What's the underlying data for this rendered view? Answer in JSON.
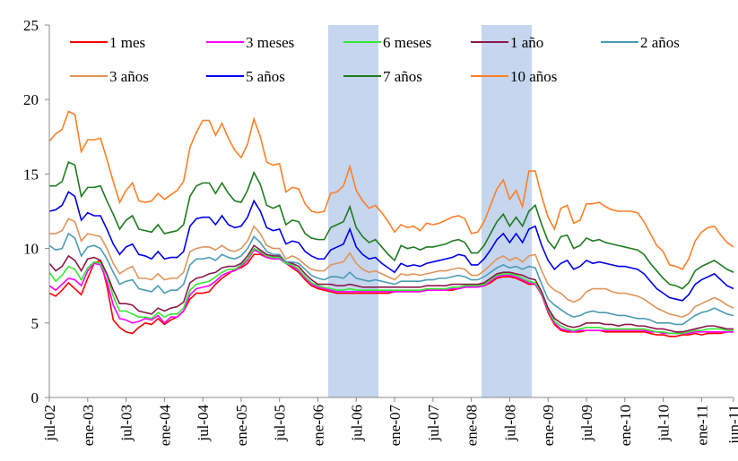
{
  "chart_data": {
    "type": "line",
    "categories": [
      "jul-02",
      null,
      null,
      null,
      null,
      null,
      "ene-03",
      null,
      null,
      null,
      null,
      null,
      "jul-03",
      null,
      null,
      null,
      null,
      null,
      "ene-04",
      null,
      null,
      null,
      null,
      null,
      "jul-04",
      null,
      null,
      null,
      null,
      null,
      "ene-05",
      null,
      null,
      null,
      null,
      null,
      "jul-05",
      null,
      null,
      null,
      null,
      null,
      "ene-06",
      null,
      null,
      null,
      null,
      null,
      "jul-06",
      null,
      null,
      null,
      null,
      null,
      "ene-07",
      null,
      null,
      null,
      null,
      null,
      "jul-07",
      null,
      null,
      null,
      null,
      null,
      "ene-08",
      null,
      null,
      null,
      null,
      null,
      "jul-08",
      null,
      null,
      null,
      null,
      null,
      "ene-09",
      null,
      null,
      null,
      null,
      null,
      "jul-09",
      null,
      null,
      null,
      null,
      null,
      "ene-10",
      null,
      null,
      null,
      null,
      null,
      "jul-10",
      null,
      null,
      null,
      null,
      null,
      "ene-11",
      null,
      null,
      null,
      null,
      "jun-11"
    ],
    "series": [
      {
        "name": "1 mes",
        "color": "#ff0000",
        "values": [
          7.0,
          6.8,
          7.2,
          7.7,
          7.3,
          6.9,
          8.0,
          9.0,
          9.2,
          7.5,
          5.2,
          4.7,
          4.4,
          4.3,
          4.7,
          5.0,
          4.9,
          5.3,
          4.9,
          5.2,
          5.4,
          5.8,
          6.6,
          7.0,
          7.0,
          7.1,
          7.6,
          8.0,
          8.3,
          8.6,
          8.7,
          9.0,
          9.6,
          9.6,
          9.4,
          9.3,
          9.3,
          9.0,
          8.7,
          8.4,
          7.9,
          7.5,
          7.3,
          7.2,
          7.1,
          7.0,
          7.0,
          7.0,
          7.0,
          7.0,
          7.0,
          7.0,
          7.0,
          7.0,
          7.1,
          7.1,
          7.1,
          7.1,
          7.1,
          7.2,
          7.2,
          7.2,
          7.2,
          7.2,
          7.3,
          7.4,
          7.5,
          7.5,
          7.5,
          7.7,
          8.0,
          8.1,
          8.1,
          8.0,
          7.8,
          7.6,
          7.6,
          6.9,
          5.7,
          4.9,
          4.5,
          4.4,
          4.4,
          4.4,
          4.5,
          4.5,
          4.5,
          4.4,
          4.4,
          4.4,
          4.4,
          4.4,
          4.4,
          4.4,
          4.3,
          4.2,
          4.2,
          4.1,
          4.1,
          4.2,
          4.2,
          4.3,
          4.2,
          4.3,
          4.3,
          4.3,
          4.4,
          4.4
        ]
      },
      {
        "name": "3 meses",
        "color": "#ff00ff",
        "values": [
          7.5,
          7.2,
          7.6,
          8.0,
          7.9,
          7.5,
          8.5,
          9.0,
          8.9,
          7.8,
          6.2,
          5.3,
          5.2,
          5.0,
          5.1,
          5.3,
          5.2,
          5.5,
          5.0,
          5.4,
          5.4,
          5.8,
          6.9,
          7.3,
          7.4,
          7.5,
          7.8,
          8.2,
          8.4,
          8.5,
          8.8,
          9.2,
          9.9,
          9.7,
          9.4,
          9.3,
          9.3,
          9.0,
          8.8,
          8.5,
          8.0,
          7.6,
          7.4,
          7.3,
          7.2,
          7.1,
          7.1,
          7.1,
          7.1,
          7.1,
          7.1,
          7.1,
          7.1,
          7.1,
          7.1,
          7.1,
          7.1,
          7.1,
          7.1,
          7.2,
          7.2,
          7.2,
          7.2,
          7.3,
          7.3,
          7.4,
          7.4,
          7.4,
          7.5,
          7.8,
          8.1,
          8.2,
          8.2,
          8.1,
          7.9,
          7.7,
          7.6,
          6.9,
          5.8,
          5.0,
          4.6,
          4.5,
          4.4,
          4.5,
          4.5,
          4.5,
          4.5,
          4.5,
          4.5,
          4.5,
          4.5,
          4.5,
          4.5,
          4.5,
          4.4,
          4.4,
          4.3,
          4.3,
          4.3,
          4.3,
          4.3,
          4.4,
          4.4,
          4.4,
          4.4,
          4.4,
          4.4,
          4.4
        ]
      },
      {
        "name": "6 meses",
        "color": "#33e833",
        "values": [
          8.4,
          7.8,
          8.2,
          8.8,
          8.6,
          7.9,
          8.7,
          9.1,
          9.0,
          8.2,
          6.8,
          5.8,
          5.8,
          5.6,
          5.4,
          5.4,
          5.3,
          5.7,
          5.4,
          5.6,
          5.6,
          6.0,
          7.2,
          7.6,
          7.7,
          7.8,
          8.1,
          8.4,
          8.6,
          8.6,
          8.9,
          9.3,
          10.0,
          9.8,
          9.5,
          9.4,
          9.4,
          9.0,
          8.9,
          8.6,
          8.1,
          7.7,
          7.5,
          7.4,
          7.3,
          7.2,
          7.2,
          7.3,
          7.2,
          7.2,
          7.2,
          7.2,
          7.2,
          7.2,
          7.2,
          7.2,
          7.2,
          7.2,
          7.2,
          7.3,
          7.3,
          7.3,
          7.3,
          7.4,
          7.4,
          7.5,
          7.5,
          7.5,
          7.6,
          7.9,
          8.2,
          8.3,
          8.3,
          8.2,
          8.0,
          7.8,
          7.7,
          7.0,
          5.9,
          5.1,
          4.8,
          4.6,
          4.5,
          4.6,
          4.7,
          4.7,
          4.7,
          4.6,
          4.6,
          4.6,
          4.6,
          4.6,
          4.6,
          4.6,
          4.5,
          4.4,
          4.4,
          4.3,
          4.3,
          4.3,
          4.4,
          4.5,
          4.5,
          4.6,
          4.6,
          4.6,
          4.5,
          4.5
        ]
      },
      {
        "name": "1 año",
        "color": "#8b1a4a",
        "values": [
          9.0,
          8.5,
          8.8,
          9.5,
          9.2,
          8.5,
          9.3,
          9.4,
          9.2,
          8.3,
          7.2,
          6.3,
          6.3,
          6.2,
          5.8,
          5.7,
          5.6,
          6.0,
          5.8,
          6.0,
          6.1,
          6.4,
          7.7,
          8.0,
          8.1,
          8.3,
          8.4,
          8.7,
          8.8,
          8.8,
          9.0,
          9.5,
          10.2,
          9.9,
          9.6,
          9.5,
          9.5,
          9.1,
          9.0,
          8.8,
          8.3,
          7.9,
          7.6,
          7.6,
          7.6,
          7.5,
          7.5,
          7.6,
          7.5,
          7.4,
          7.4,
          7.4,
          7.4,
          7.4,
          7.4,
          7.4,
          7.4,
          7.4,
          7.4,
          7.5,
          7.5,
          7.5,
          7.5,
          7.6,
          7.6,
          7.6,
          7.6,
          7.6,
          7.7,
          8.0,
          8.3,
          8.4,
          8.4,
          8.3,
          8.2,
          8.0,
          7.9,
          7.1,
          6.0,
          5.3,
          5.0,
          4.8,
          4.7,
          4.8,
          5.0,
          5.0,
          5.0,
          4.9,
          4.9,
          4.8,
          4.9,
          4.9,
          4.8,
          4.8,
          4.7,
          4.6,
          4.6,
          4.5,
          4.4,
          4.4,
          4.5,
          4.6,
          4.7,
          4.8,
          4.8,
          4.7,
          4.6,
          4.6
        ]
      },
      {
        "name": "2 años",
        "color": "#4a9bb5",
        "values": [
          10.2,
          9.9,
          10.0,
          11.0,
          10.7,
          9.5,
          10.1,
          10.2,
          10.0,
          9.3,
          8.4,
          7.6,
          7.8,
          7.9,
          7.3,
          7.2,
          7.1,
          7.5,
          7.0,
          7.2,
          7.2,
          7.6,
          8.9,
          9.3,
          9.3,
          9.4,
          9.2,
          9.6,
          9.4,
          9.3,
          9.5,
          10.0,
          10.8,
          10.4,
          9.8,
          9.6,
          9.6,
          9.1,
          9.1,
          9.0,
          8.6,
          8.2,
          8.0,
          7.9,
          8.1,
          8.1,
          8.0,
          8.4,
          8.0,
          7.9,
          7.8,
          7.9,
          7.8,
          7.7,
          7.6,
          7.8,
          7.8,
          7.8,
          7.8,
          7.9,
          7.9,
          8.0,
          8.0,
          8.1,
          8.2,
          8.1,
          7.9,
          7.9,
          8.1,
          8.4,
          8.7,
          8.9,
          8.7,
          8.8,
          8.6,
          8.8,
          8.7,
          7.6,
          6.6,
          6.2,
          5.9,
          5.6,
          5.4,
          5.5,
          5.7,
          5.8,
          5.7,
          5.7,
          5.6,
          5.5,
          5.5,
          5.4,
          5.3,
          5.3,
          5.2,
          5.0,
          5.0,
          5.0,
          4.9,
          4.9,
          5.2,
          5.5,
          5.7,
          5.8,
          6.0,
          5.8,
          5.6,
          5.5
        ]
      },
      {
        "name": "3 años",
        "color": "#e0945a",
        "values": [
          11.0,
          11.0,
          11.2,
          12.0,
          11.8,
          10.5,
          11.0,
          10.9,
          10.8,
          10.0,
          9.0,
          8.3,
          8.6,
          8.8,
          8.0,
          8.0,
          7.9,
          8.3,
          7.9,
          8.0,
          8.0,
          8.4,
          9.8,
          10.0,
          10.1,
          10.1,
          9.9,
          10.2,
          9.9,
          9.8,
          10.0,
          10.5,
          11.5,
          11.0,
          10.2,
          10.0,
          10.0,
          9.3,
          9.5,
          9.3,
          8.9,
          8.6,
          8.5,
          8.5,
          8.9,
          9.0,
          9.1,
          9.7,
          9.0,
          8.6,
          8.4,
          8.5,
          8.3,
          8.1,
          7.9,
          8.3,
          8.2,
          8.3,
          8.2,
          8.3,
          8.4,
          8.5,
          8.5,
          8.6,
          8.7,
          8.6,
          8.2,
          8.2,
          8.5,
          8.9,
          9.3,
          9.5,
          9.2,
          9.4,
          9.1,
          9.5,
          9.6,
          8.5,
          7.6,
          7.2,
          7.0,
          6.6,
          6.4,
          6.6,
          7.1,
          7.3,
          7.3,
          7.3,
          7.1,
          7.0,
          7.0,
          6.9,
          6.8,
          6.6,
          6.3,
          6.0,
          5.8,
          5.6,
          5.5,
          5.4,
          5.6,
          6.1,
          6.3,
          6.5,
          6.7,
          6.5,
          6.2,
          6.0
        ]
      },
      {
        "name": "5 años",
        "color": "#0000ee",
        "values": [
          12.5,
          12.6,
          12.9,
          13.8,
          13.5,
          11.9,
          12.4,
          12.2,
          12.2,
          11.3,
          10.3,
          9.6,
          10.1,
          10.3,
          9.6,
          9.5,
          9.3,
          9.8,
          9.3,
          9.4,
          9.4,
          9.8,
          11.5,
          12.0,
          12.1,
          12.1,
          11.6,
          12.2,
          11.6,
          11.4,
          11.5,
          12.1,
          13.2,
          12.5,
          11.4,
          11.2,
          11.3,
          10.3,
          10.5,
          10.4,
          9.8,
          9.5,
          9.3,
          9.3,
          9.9,
          10.1,
          10.3,
          11.3,
          10.1,
          9.6,
          9.3,
          9.4,
          9.0,
          8.7,
          8.4,
          9.0,
          8.8,
          8.9,
          8.8,
          9.0,
          9.1,
          9.2,
          9.3,
          9.4,
          9.6,
          9.5,
          8.9,
          8.9,
          9.3,
          9.9,
          10.6,
          11.0,
          10.4,
          11.0,
          10.4,
          11.3,
          11.5,
          10.2,
          9.2,
          8.6,
          9.0,
          9.2,
          8.6,
          8.8,
          9.2,
          9.0,
          9.1,
          9.0,
          8.9,
          8.8,
          8.8,
          8.7,
          8.6,
          8.3,
          7.8,
          7.3,
          7.0,
          6.7,
          6.6,
          6.5,
          6.9,
          7.6,
          7.9,
          8.1,
          8.3,
          7.9,
          7.5,
          7.3
        ]
      },
      {
        "name": "7 años",
        "color": "#1e7b1e",
        "values": [
          14.2,
          14.2,
          14.5,
          15.8,
          15.6,
          13.5,
          14.1,
          14.1,
          14.2,
          13.2,
          12.3,
          11.3,
          11.9,
          12.2,
          11.3,
          11.2,
          11.1,
          11.6,
          11.0,
          11.1,
          11.2,
          11.6,
          13.5,
          14.2,
          14.4,
          14.4,
          13.7,
          14.4,
          13.7,
          13.2,
          13.1,
          13.9,
          15.1,
          14.3,
          12.9,
          12.7,
          12.9,
          11.6,
          11.9,
          11.8,
          11.0,
          10.7,
          10.6,
          10.6,
          11.4,
          11.6,
          11.8,
          12.8,
          11.4,
          10.8,
          10.4,
          10.6,
          10.1,
          9.6,
          9.2,
          10.2,
          10.0,
          10.1,
          9.9,
          10.1,
          10.1,
          10.2,
          10.3,
          10.5,
          10.6,
          10.4,
          9.7,
          9.7,
          10.2,
          11.0,
          11.8,
          12.3,
          11.5,
          12.1,
          11.5,
          12.5,
          12.9,
          11.6,
          10.5,
          10.0,
          10.8,
          10.9,
          10.0,
          10.2,
          10.7,
          10.5,
          10.6,
          10.4,
          10.3,
          10.2,
          10.1,
          10.0,
          9.9,
          9.6,
          9.0,
          8.5,
          8.0,
          7.6,
          7.5,
          7.3,
          7.7,
          8.5,
          8.8,
          9.0,
          9.2,
          8.9,
          8.6,
          8.4
        ]
      },
      {
        "name": "10 años",
        "color": "#ff7f27",
        "values": [
          17.2,
          17.7,
          18.0,
          19.2,
          19.0,
          16.5,
          17.3,
          17.3,
          17.4,
          16.0,
          14.5,
          13.1,
          13.9,
          14.4,
          13.2,
          13.1,
          13.2,
          13.7,
          13.3,
          13.6,
          13.9,
          14.5,
          16.8,
          17.8,
          18.6,
          18.6,
          17.6,
          18.4,
          17.4,
          16.6,
          16.1,
          17.0,
          18.7,
          17.5,
          15.8,
          15.6,
          15.7,
          13.8,
          14.1,
          14.0,
          13.0,
          12.5,
          12.4,
          12.5,
          13.7,
          13.8,
          14.2,
          15.5,
          13.9,
          13.2,
          12.7,
          12.9,
          12.4,
          11.8,
          11.1,
          11.6,
          11.4,
          11.5,
          11.2,
          11.7,
          11.6,
          11.7,
          11.9,
          12.1,
          12.2,
          12.0,
          11.0,
          11.1,
          11.8,
          12.9,
          14.0,
          14.6,
          13.3,
          13.9,
          12.8,
          15.2,
          15.2,
          13.5,
          12.1,
          11.3,
          12.7,
          12.9,
          11.7,
          11.9,
          13.0,
          13.0,
          13.1,
          12.8,
          12.6,
          12.5,
          12.5,
          12.5,
          12.4,
          11.8,
          11.0,
          10.2,
          9.8,
          8.9,
          8.8,
          8.6,
          9.3,
          10.5,
          11.1,
          11.4,
          11.5,
          10.9,
          10.4,
          10.1
        ]
      }
    ],
    "ylim": [
      0,
      25
    ],
    "yticks": [
      0,
      5,
      10,
      15,
      20,
      25
    ],
    "grid": false,
    "legend": "top"
  }
}
